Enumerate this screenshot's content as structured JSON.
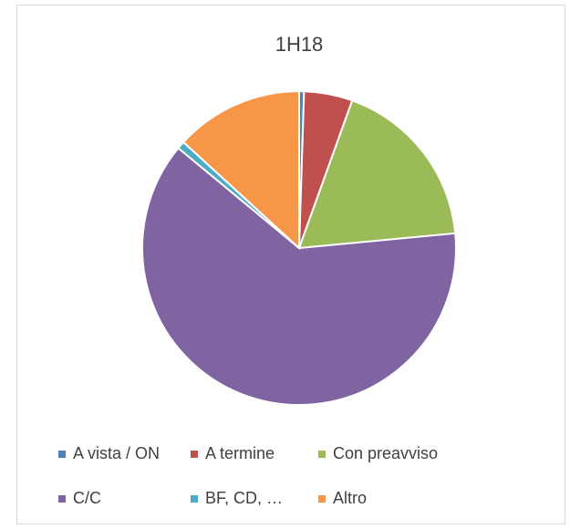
{
  "chart_data": {
    "type": "pie",
    "title": "1H18",
    "categories": [
      "A vista / ON",
      "A termine",
      "Con preavviso",
      "C/C",
      "BF, CD, …",
      "Altro"
    ],
    "values": [
      0.5,
      5,
      18,
      62.5,
      0.8,
      13.2
    ],
    "colors": [
      "#4F81BD",
      "#C0504D",
      "#9BBB59",
      "#8064A2",
      "#4BACC6",
      "#F79646"
    ],
    "legend": "bottom"
  }
}
